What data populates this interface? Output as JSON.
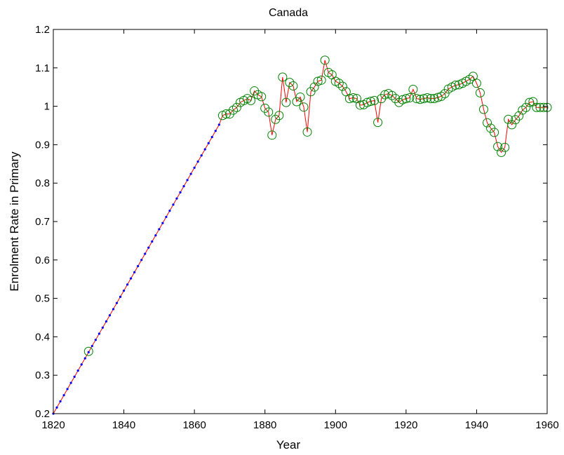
{
  "chart_data": {
    "type": "line",
    "title": "Canada",
    "xlabel": "Year",
    "ylabel": "Enrolment Rate in Primary",
    "xlim": [
      1820,
      1960
    ],
    "ylim": [
      0.2,
      1.2
    ],
    "xticks": [
      "1820",
      "1840",
      "1860",
      "1880",
      "1900",
      "1920",
      "1940",
      "1960"
    ],
    "yticks": [
      "0.2",
      "0.3",
      "0.4",
      "0.5",
      "0.6",
      "0.7",
      "0.8",
      "0.9",
      "1",
      "1.1",
      "1.2"
    ],
    "grid": false,
    "colors": {
      "line": "#ff0000",
      "interpolated_marker": "#0000ff",
      "observed_marker": "#008000"
    },
    "series": [
      {
        "role": "interpolated",
        "marker": "dot",
        "x": [
          1820,
          1821,
          1822,
          1823,
          1824,
          1825,
          1826,
          1827,
          1828,
          1829,
          1830,
          1831,
          1832,
          1833,
          1834,
          1835,
          1836,
          1837,
          1838,
          1839,
          1840,
          1841,
          1842,
          1843,
          1844,
          1845,
          1846,
          1847,
          1848,
          1849,
          1850,
          1851,
          1852,
          1853,
          1854,
          1855,
          1856,
          1857,
          1858,
          1859,
          1860,
          1861,
          1862,
          1863,
          1864,
          1865,
          1866,
          1867
        ],
        "y": [
          0.2,
          0.216,
          0.232,
          0.248,
          0.264,
          0.28,
          0.296,
          0.312,
          0.328,
          0.344,
          0.36,
          0.376,
          0.392,
          0.408,
          0.424,
          0.44,
          0.456,
          0.472,
          0.488,
          0.504,
          0.52,
          0.536,
          0.552,
          0.568,
          0.584,
          0.6,
          0.616,
          0.632,
          0.648,
          0.664,
          0.68,
          0.696,
          0.712,
          0.728,
          0.744,
          0.76,
          0.776,
          0.792,
          0.808,
          0.824,
          0.84,
          0.856,
          0.872,
          0.888,
          0.904,
          0.92,
          0.936,
          0.952
        ]
      },
      {
        "role": "observed",
        "marker": "circle",
        "x": [
          1830,
          1868,
          1869,
          1870,
          1871,
          1872,
          1873,
          1874,
          1875,
          1876,
          1877,
          1878,
          1879,
          1880,
          1881,
          1882,
          1883,
          1884,
          1885,
          1886,
          1887,
          1888,
          1889,
          1890,
          1891,
          1892,
          1893,
          1894,
          1895,
          1896,
          1897,
          1898,
          1899,
          1900,
          1901,
          1902,
          1903,
          1904,
          1905,
          1906,
          1907,
          1908,
          1909,
          1910,
          1911,
          1912,
          1913,
          1914,
          1915,
          1916,
          1917,
          1918,
          1919,
          1920,
          1921,
          1922,
          1923,
          1924,
          1925,
          1926,
          1927,
          1928,
          1929,
          1930,
          1931,
          1932,
          1933,
          1934,
          1935,
          1936,
          1937,
          1938,
          1939,
          1940,
          1941,
          1942,
          1943,
          1944,
          1945,
          1946,
          1947,
          1948,
          1949,
          1950,
          1951,
          1952,
          1953,
          1954,
          1955,
          1956,
          1957,
          1958,
          1959,
          1960
        ],
        "y": [
          0.362,
          0.976,
          0.98,
          0.98,
          0.99,
          0.997,
          1.01,
          1.015,
          1.02,
          1.015,
          1.04,
          1.03,
          1.025,
          0.995,
          0.985,
          0.925,
          0.966,
          0.976,
          1.076,
          1.01,
          1.062,
          1.053,
          1.012,
          1.024,
          0.998,
          0.933,
          1.038,
          1.05,
          1.065,
          1.068,
          1.12,
          1.088,
          1.082,
          1.065,
          1.06,
          1.052,
          1.038,
          1.02,
          1.022,
          1.02,
          1.003,
          1.004,
          1.01,
          1.013,
          1.015,
          0.958,
          1.02,
          1.03,
          1.033,
          1.028,
          1.02,
          1.01,
          1.017,
          1.02,
          1.022,
          1.044,
          1.02,
          1.018,
          1.02,
          1.022,
          1.02,
          1.02,
          1.023,
          1.026,
          1.033,
          1.045,
          1.05,
          1.055,
          1.056,
          1.06,
          1.065,
          1.07,
          1.078,
          1.06,
          1.035,
          0.992,
          0.957,
          0.943,
          0.932,
          0.895,
          0.88,
          0.893,
          0.966,
          0.952,
          0.965,
          0.975,
          0.99,
          0.997,
          1.01,
          1.012,
          0.997,
          0.997,
          0.997,
          0.997
        ]
      }
    ]
  }
}
